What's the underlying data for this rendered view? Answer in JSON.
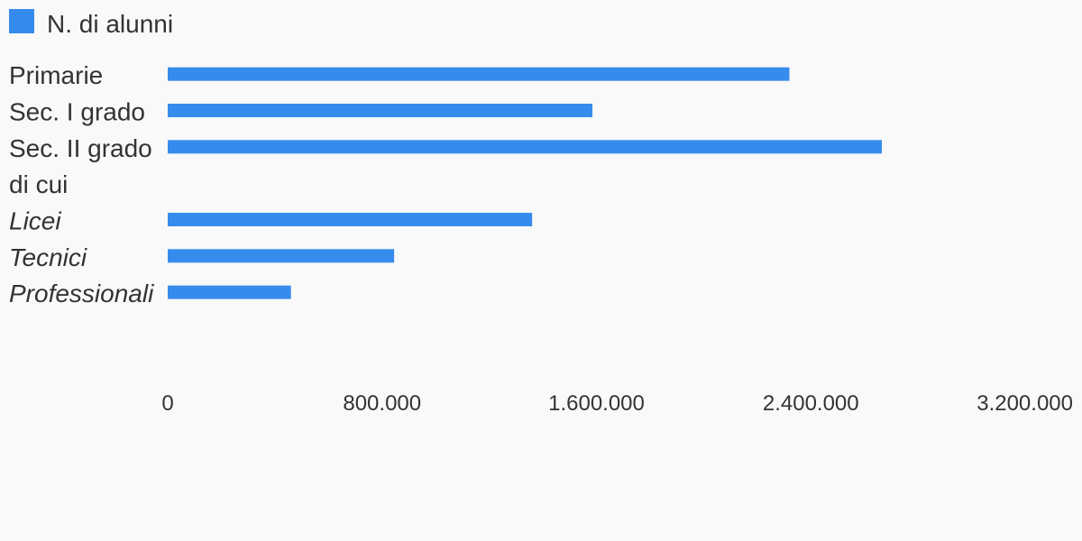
{
  "colors": {
    "background": "#f9f9f9",
    "bar": "#368ced",
    "text": "#333333"
  },
  "chart_data": {
    "type": "bar",
    "orientation": "horizontal",
    "legend": {
      "placement": "top-left",
      "entries": [
        "N. di alunni"
      ]
    },
    "categories": [
      {
        "label": "Primarie",
        "italic": false
      },
      {
        "label": "Sec. I grado",
        "italic": false
      },
      {
        "label": "Sec. II grado",
        "italic": false
      },
      {
        "label": "di cui",
        "italic": false
      },
      {
        "label": "Licei",
        "italic": true
      },
      {
        "label": "Tecnici",
        "italic": true
      },
      {
        "label": "Professionali",
        "italic": true
      }
    ],
    "series": [
      {
        "name": "N. di alunni",
        "values": [
          2320000,
          1585000,
          2665000,
          null,
          1360000,
          845000,
          460000
        ]
      }
    ],
    "xlim": [
      0,
      3200000
    ],
    "xticks": [
      0,
      800000,
      1600000,
      2400000,
      3200000
    ],
    "xtick_labels": [
      "0",
      "800.000",
      "1.600.000",
      "2.400.000",
      "3.200.000"
    ],
    "grid": false
  }
}
